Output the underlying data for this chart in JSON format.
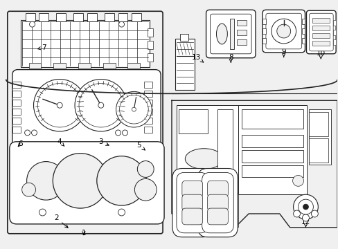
{
  "bg": "#f0f0f0",
  "lc": "#222222",
  "white": "#ffffff",
  "fig_width": 4.89,
  "fig_height": 3.6,
  "dpi": 100
}
